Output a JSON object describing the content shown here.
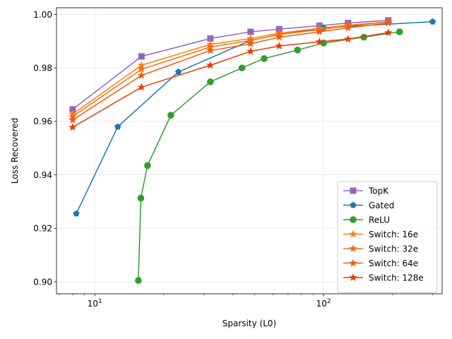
{
  "chart_data": {
    "type": "line",
    "title": "",
    "xlabel": "Sparsity (L0)",
    "ylabel": "Loss Recovered",
    "xscale": "log",
    "xlim": [
      6.8,
      330
    ],
    "ylim": [
      0.8955,
      1.0025
    ],
    "x_ticks": [
      10,
      100
    ],
    "x_tick_labels": [
      "10^1",
      "10^2"
    ],
    "y_ticks": [
      0.9,
      0.92,
      0.94,
      0.96,
      0.98,
      1.0
    ],
    "y_tick_labels": [
      "0.90",
      "0.92",
      "0.94",
      "0.96",
      "0.98",
      "1.00"
    ],
    "grid": true,
    "legend_position": "lower-right",
    "series": [
      {
        "name": "TopK",
        "color": "#9467bd",
        "marker": "square",
        "x": [
          8,
          16,
          32,
          48,
          64,
          96,
          128,
          192
        ],
        "y": [
          0.9645,
          0.9843,
          0.991,
          0.9935,
          0.9945,
          0.9958,
          0.9968,
          0.9978
        ]
      },
      {
        "name": "Gated",
        "color": "#1f77b4",
        "marker": "pentagon",
        "x": [
          8.3,
          12.6,
          23.2,
          48,
          64,
          100,
          300
        ],
        "y": [
          0.9255,
          0.958,
          0.9785,
          0.9903,
          0.9925,
          0.995,
          0.9973
        ]
      },
      {
        "name": "ReLU",
        "color": "#2ca02c",
        "marker": "circle",
        "x": [
          15.5,
          15.9,
          17,
          21.5,
          32,
          44,
          55,
          77,
          100,
          150,
          215
        ],
        "y": [
          0.9005,
          0.9313,
          0.9435,
          0.9623,
          0.9748,
          0.98,
          0.9835,
          0.9867,
          0.9893,
          0.9915,
          0.9935
        ]
      },
      {
        "name": "Switch: 16e",
        "color": "#ff7f0e",
        "marker": "star",
        "x": [
          8,
          16,
          32,
          48,
          64,
          96,
          128,
          192
        ],
        "y": [
          0.9627,
          0.981,
          0.9888,
          0.991,
          0.993,
          0.9948,
          0.996,
          0.9972
        ]
      },
      {
        "name": "Switch: 32e",
        "color": "#fd6b0a",
        "marker": "star",
        "x": [
          8,
          16,
          32,
          48,
          64,
          96,
          128,
          192
        ],
        "y": [
          0.9618,
          0.9795,
          0.9878,
          0.9903,
          0.9925,
          0.9943,
          0.9958,
          0.9972
        ]
      },
      {
        "name": "Switch: 64e",
        "color": "#f65a07",
        "marker": "star",
        "x": [
          8,
          16,
          32,
          48,
          64,
          96,
          128,
          192
        ],
        "y": [
          0.9605,
          0.9772,
          0.9865,
          0.989,
          0.9915,
          0.9935,
          0.995,
          0.9968
        ]
      },
      {
        "name": "Switch: 128e",
        "color": "#ee3a02",
        "marker": "star",
        "x": [
          8,
          16,
          32,
          48,
          64,
          96,
          128,
          192
        ],
        "y": [
          0.9578,
          0.9728,
          0.981,
          0.9862,
          0.9882,
          0.9898,
          0.9908,
          0.9932
        ]
      }
    ]
  }
}
